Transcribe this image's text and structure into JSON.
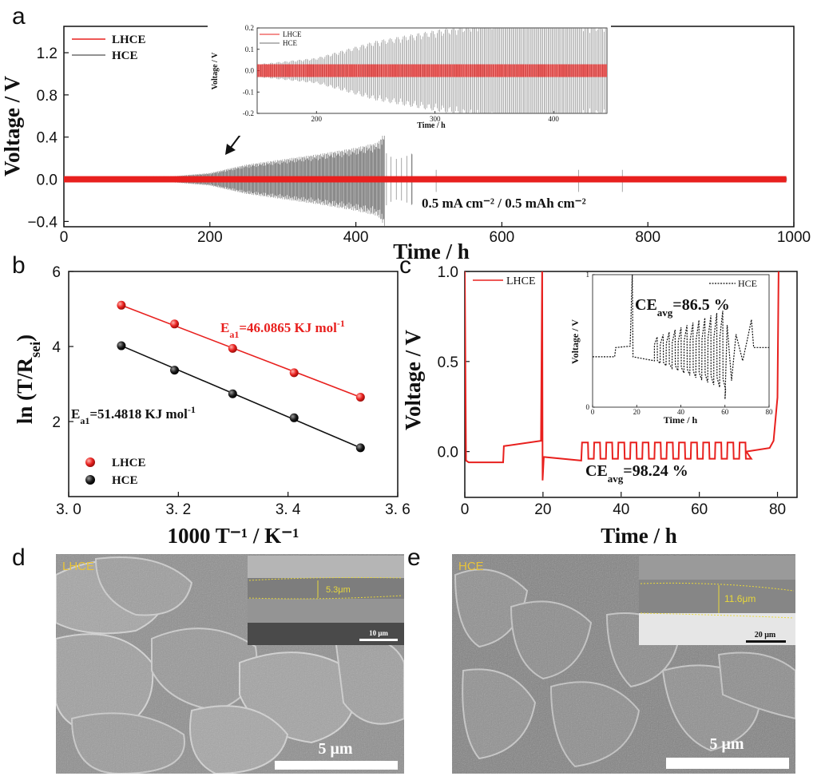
{
  "chart_data": [
    {
      "panel": "a",
      "type": "line",
      "xlabel": "Time / h",
      "ylabel": "Voltage / V",
      "xlim": [
        0,
        1000
      ],
      "ylim": [
        -0.45,
        1.45
      ],
      "xticks": [
        0,
        200,
        400,
        600,
        800,
        1000
      ],
      "yticks": [
        -0.4,
        0.0,
        0.4,
        0.8,
        1.2
      ],
      "ytick_labels": [
        "−0.4",
        "0.0",
        "0.4",
        "0.8",
        "1.2"
      ],
      "annotation": "0.5 mA cm⁻² / 0.5 mAh cm⁻²",
      "series": [
        {
          "name": "LHCE",
          "color": "#e8201e",
          "envelope": {
            "x": [
              0,
              990
            ],
            "amplitude": [
              0.03,
              0.03
            ]
          }
        },
        {
          "name": "HCE",
          "color": "#6e6e6e",
          "envelope": {
            "x": [
              0,
              150,
              200,
              250,
              300,
              350,
              400,
              430,
              440,
              480,
              500,
              990
            ],
            "amplitude": [
              0.02,
              0.03,
              0.06,
              0.14,
              0.19,
              0.24,
              0.3,
              0.35,
              0.45,
              0.02,
              0.02,
              0.02
            ]
          }
        }
      ],
      "inset": {
        "xlabel": "Time / h",
        "ylabel": "Voltage / V",
        "xlim": [
          150,
          445
        ],
        "ylim": [
          -0.2,
          0.2
        ],
        "xticks": [
          200,
          300,
          400
        ],
        "yticks": [
          -0.2,
          -0.1,
          0.0,
          0.1,
          0.2
        ],
        "ytick_labels": [
          "-0.2",
          "-0.1",
          "0.0",
          "0.1",
          "0.2"
        ],
        "legend": [
          "LHCE",
          "HCE"
        ]
      }
    },
    {
      "panel": "b",
      "type": "scatter",
      "xlabel": "1000 T⁻¹ / K⁻¹",
      "ylabel": "ln (T/R",
      "ylabel_sub": "sei",
      "ylabel_end": ")",
      "xlim": [
        3.0,
        3.6
      ],
      "ylim": [
        0,
        6
      ],
      "xticks": [
        3.0,
        3.2,
        3.4,
        3.6
      ],
      "xtick_labels": [
        "3. 0",
        "3. 2",
        "3. 4",
        "3. 6"
      ],
      "yticks": [
        2,
        4,
        6
      ],
      "series": [
        {
          "name": "LHCE",
          "color": "#e8201e",
          "x": [
            3.096,
            3.193,
            3.299,
            3.411,
            3.532
          ],
          "y": [
            5.1,
            4.6,
            3.95,
            3.3,
            2.65
          ],
          "fit_label": "E",
          "fit_sub": "a1",
          "fit_value": "=46.0865 KJ mol",
          "fit_unit_exp": "-1"
        },
        {
          "name": "HCE",
          "color": "#111111",
          "x": [
            3.096,
            3.193,
            3.299,
            3.411,
            3.532
          ],
          "y": [
            4.02,
            3.37,
            2.74,
            2.1,
            1.3
          ],
          "fit_label": "E",
          "fit_sub": "a1",
          "fit_value": "=51.4818 KJ mol",
          "fit_unit_exp": "-1"
        }
      ]
    },
    {
      "panel": "c",
      "type": "line",
      "xlabel": "Time / h",
      "ylabel": "Voltage / V",
      "xlim": [
        0,
        85
      ],
      "ylim": [
        -0.25,
        1.0
      ],
      "xticks": [
        0,
        20,
        40,
        60,
        80
      ],
      "yticks": [
        0.0,
        0.5,
        1.0
      ],
      "ytick_labels": [
        "0.0",
        "0.5",
        "1.0"
      ],
      "series": [
        {
          "name": "LHCE",
          "color": "#e8201e",
          "ce_label": "CE",
          "ce_sub": "avg",
          "ce_value": "=98.24 %"
        }
      ],
      "inset": {
        "xlabel": "Time / h",
        "ylabel": "Voltage / V",
        "xlim": [
          0,
          80
        ],
        "ylim": [
          0,
          1
        ],
        "xticks": [
          0,
          20,
          40,
          60,
          80
        ],
        "yticks": [
          0,
          1
        ],
        "series": [
          {
            "name": "HCE",
            "ce_label": "CE",
            "ce_sub": "avg",
            "ce_value": "=86.5 %"
          }
        ]
      }
    }
  ],
  "panels": {
    "a": "a",
    "b": "b",
    "c": "c",
    "d": "d",
    "e": "e"
  },
  "sem": {
    "d": {
      "label": "LHCE",
      "scale_bar": "5 μm",
      "inset_thickness": "5.3μm",
      "inset_scale": "10 μm"
    },
    "e": {
      "label": "HCE",
      "scale_bar": "5 μm",
      "inset_thickness": "11.6μm",
      "inset_scale": "20 μm"
    }
  }
}
